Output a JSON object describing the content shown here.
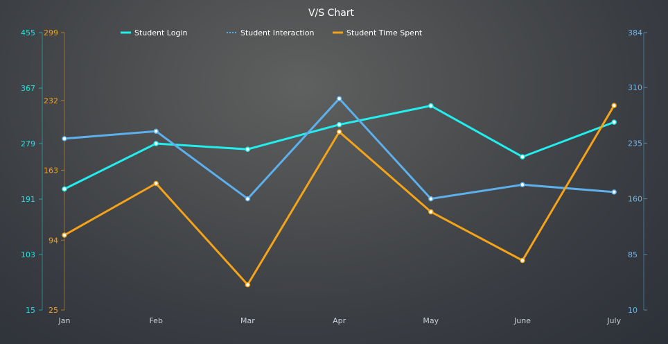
{
  "chart_data": {
    "type": "line",
    "title": "V/S Chart",
    "categories": [
      "Jan",
      "Feb",
      "Mar",
      "Apr",
      "May",
      "June",
      "July"
    ],
    "legend_position": "top",
    "grid": false,
    "axes": {
      "left_outer": {
        "min": 15,
        "max": 455,
        "ticks": [
          15,
          103,
          191,
          279,
          367,
          455
        ],
        "color": "#20e3e3"
      },
      "left_inner": {
        "min": 25,
        "max": 299,
        "ticks": [
          25,
          94,
          163,
          232,
          299
        ],
        "color": "#f0a020"
      },
      "right": {
        "min": 10,
        "max": 384,
        "ticks": [
          10,
          85,
          160,
          235,
          310,
          384
        ],
        "color": "#6cb6ec"
      }
    },
    "series": [
      {
        "name": "Student Login",
        "axis": "left_outer",
        "color": "#22eeee",
        "dash": "solid",
        "values": [
          207,
          279,
          270,
          309,
          339,
          258,
          313
        ]
      },
      {
        "name": "Student Interaction",
        "axis": "right",
        "color": "#5db0ec",
        "dash": "dotted",
        "values": [
          241,
          251,
          160,
          295,
          160,
          179,
          169
        ]
      },
      {
        "name": "Student Time Spent",
        "axis": "left_inner",
        "color": "#f5a41a",
        "dash": "solid",
        "values": [
          99,
          150,
          50,
          201,
          122,
          74,
          227
        ]
      }
    ]
  }
}
